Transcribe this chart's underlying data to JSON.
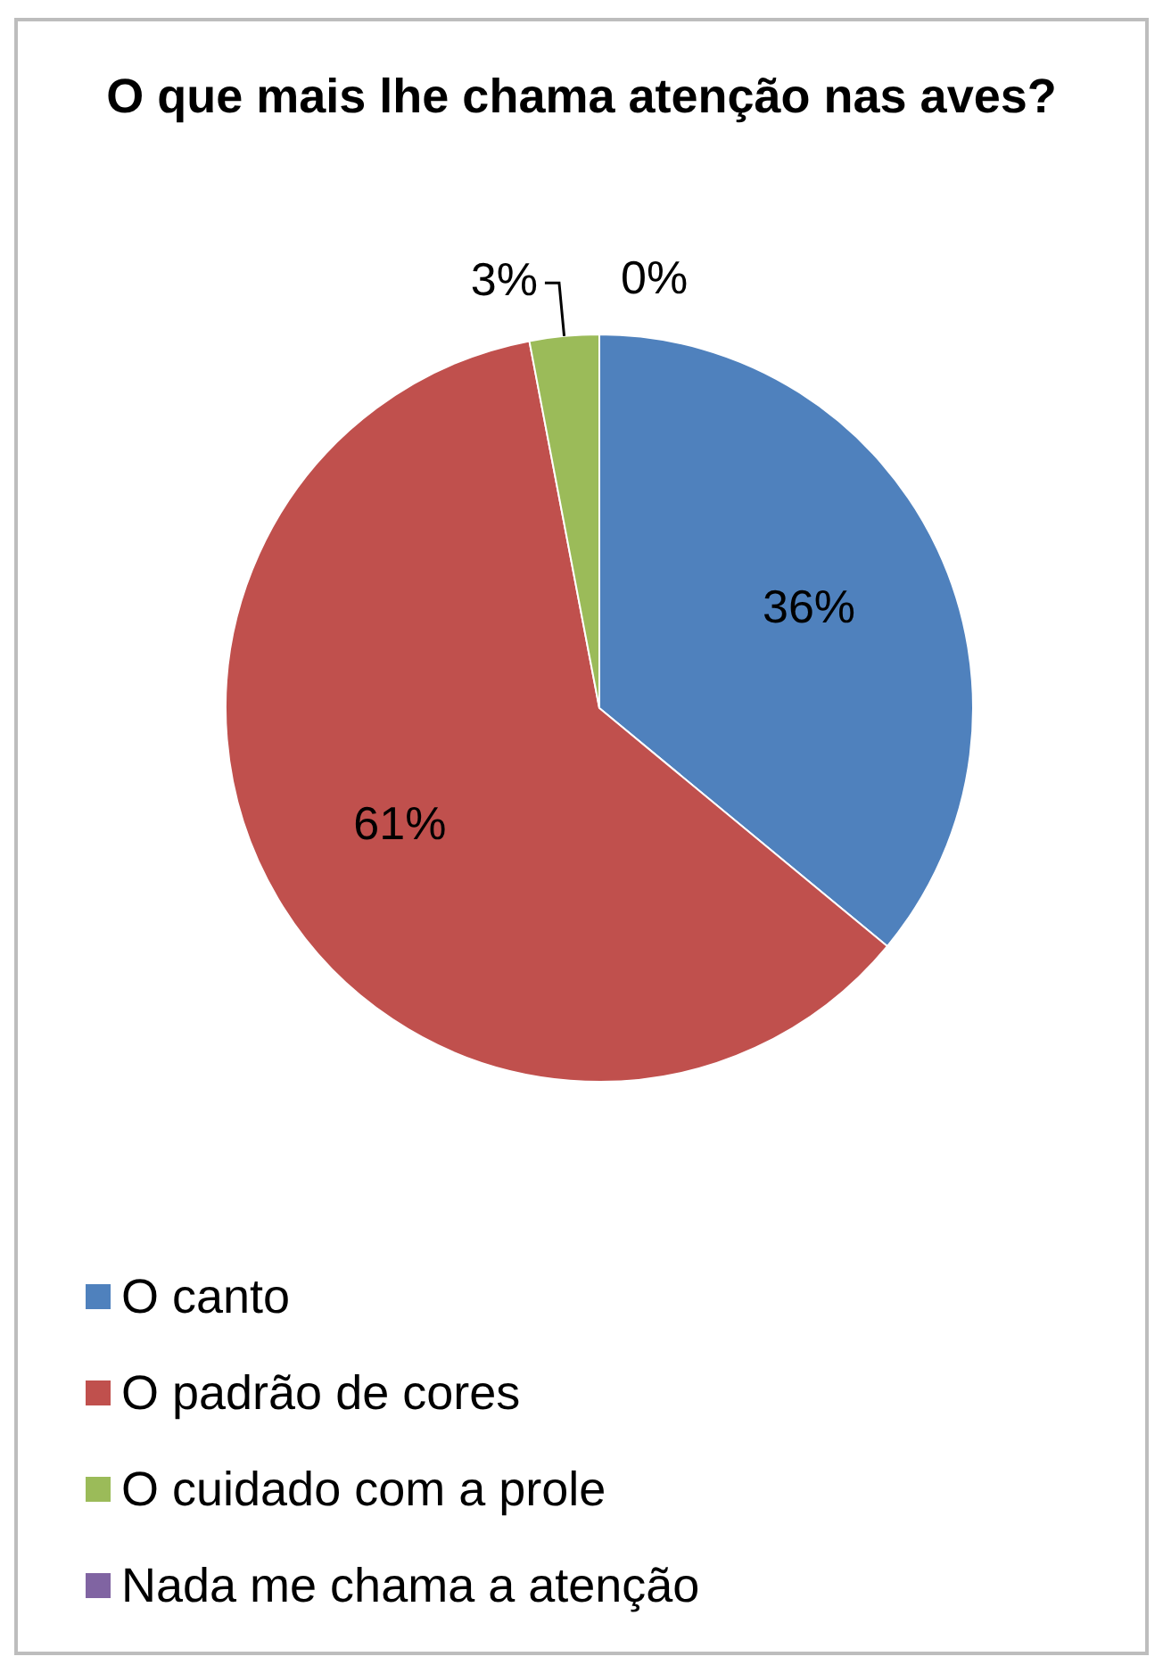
{
  "chart_data": {
    "type": "pie",
    "title": "O que mais lhe chama atenção nas aves?",
    "categories": [
      "O canto",
      "O padrão de cores",
      "O cuidado com a prole",
      "Nada me chama a atenção"
    ],
    "values": [
      36,
      61,
      3,
      0
    ],
    "colors": [
      "#4f81bd",
      "#c0504d",
      "#9bbb59",
      "#8064a2"
    ],
    "value_labels": [
      "36%",
      "61%",
      "3%",
      "0%"
    ],
    "legend": "bottom"
  }
}
